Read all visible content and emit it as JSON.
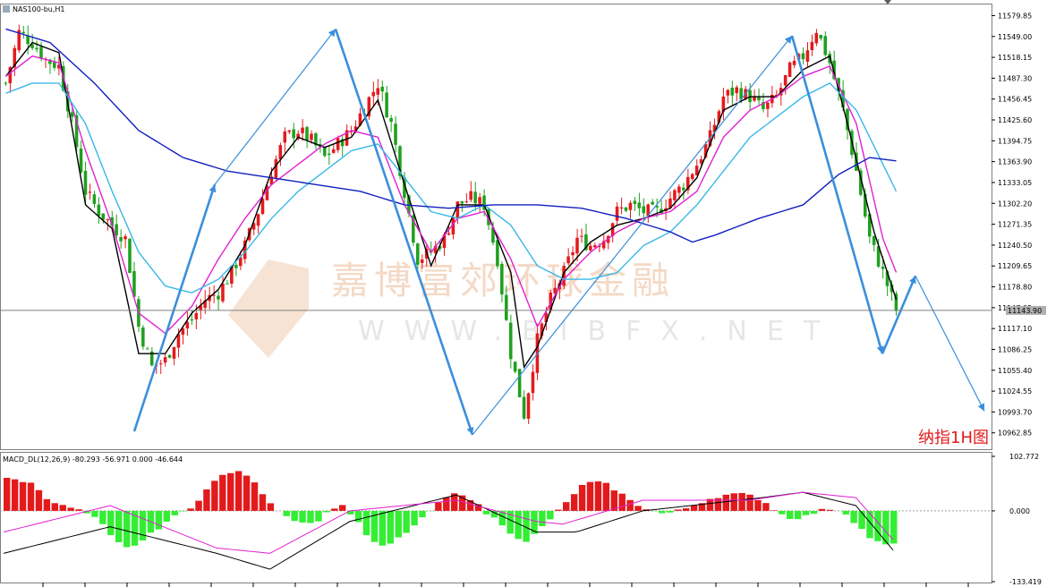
{
  "main_title": "NAS100-bu,H1",
  "macd_title": "MACD_DL(12,26,9) -80.293 -56.971 0.000 -46.644",
  "annotation": "纳指1H图",
  "watermark_cn": "嘉博富郊环球金融",
  "watermark_en": "WWW.BIBFX.NET",
  "current_price_label": "11143.90",
  "colors": {
    "bull": "#e31a1c",
    "bear": "#1fa01f",
    "ma_black": "#000000",
    "ma_magenta": "#e020d0",
    "ma_cyan": "#38b8e8",
    "ma_navy": "#1020c0",
    "arrow": "#3a8fdc",
    "macd_pos": "#e31a1c",
    "macd_neg": "#33ee33"
  },
  "chart_data": [
    {
      "type": "candlestick",
      "symbol": "NAS100-bu",
      "timeframe": "H1",
      "ylim": [
        10940,
        11595
      ],
      "y_ticks": [
        "11579.85",
        "11549.00",
        "11518.15",
        "11487.30",
        "11456.45",
        "11425.60",
        "11394.75",
        "11363.90",
        "11333.05",
        "11302.20",
        "11271.35",
        "11240.50",
        "11209.65",
        "11178.80",
        "11147.95",
        "11117.10",
        "11086.25",
        "11055.40",
        "11024.55",
        "10993.70",
        "10962.85"
      ],
      "y_tick_values": [
        11579.85,
        11549.0,
        11518.15,
        11487.3,
        11456.45,
        11425.6,
        11394.75,
        11363.9,
        11333.05,
        11302.2,
        11271.35,
        11240.5,
        11209.65,
        11178.8,
        11147.95,
        11117.1,
        11086.25,
        11055.4,
        11024.55,
        10993.7,
        10962.85
      ],
      "current_price": 11143.9,
      "close_path": [
        [
          0,
          11480
        ],
        [
          3,
          11555
        ],
        [
          6,
          11540
        ],
        [
          9,
          11515
        ],
        [
          12,
          11505
        ],
        [
          15,
          11420
        ],
        [
          18,
          11320
        ],
        [
          21,
          11290
        ],
        [
          24,
          11270
        ],
        [
          27,
          11250
        ],
        [
          30,
          11120
        ],
        [
          33,
          11060
        ],
        [
          36,
          11070
        ],
        [
          39,
          11110
        ],
        [
          42,
          11130
        ],
        [
          45,
          11160
        ],
        [
          48,
          11170
        ],
        [
          51,
          11200
        ],
        [
          54,
          11240
        ],
        [
          57,
          11290
        ],
        [
          60,
          11350
        ],
        [
          63,
          11400
        ],
        [
          66,
          11410
        ],
        [
          69,
          11395
        ],
        [
          72,
          11370
        ],
        [
          75,
          11390
        ],
        [
          78,
          11410
        ],
        [
          81,
          11445
        ],
        [
          84,
          11480
        ],
        [
          87,
          11420
        ],
        [
          90,
          11320
        ],
        [
          93,
          11220
        ],
        [
          96,
          11230
        ],
        [
          99,
          11250
        ],
        [
          102,
          11300
        ],
        [
          105,
          11310
        ],
        [
          108,
          11300
        ],
        [
          111,
          11220
        ],
        [
          114,
          11080
        ],
        [
          117,
          10990
        ],
        [
          120,
          11100
        ],
        [
          123,
          11160
        ],
        [
          126,
          11200
        ],
        [
          129,
          11250
        ],
        [
          132,
          11240
        ],
        [
          135,
          11250
        ],
        [
          138,
          11290
        ],
        [
          141,
          11300
        ],
        [
          144,
          11290
        ],
        [
          147,
          11290
        ],
        [
          150,
          11310
        ],
        [
          153,
          11330
        ],
        [
          156,
          11360
        ],
        [
          159,
          11400
        ],
        [
          162,
          11460
        ],
        [
          165,
          11470
        ],
        [
          168,
          11460
        ],
        [
          171,
          11440
        ],
        [
          174,
          11460
        ],
        [
          177,
          11500
        ],
        [
          180,
          11520
        ],
        [
          183,
          11560
        ],
        [
          186,
          11510
        ],
        [
          189,
          11440
        ],
        [
          192,
          11350
        ],
        [
          195,
          11250
        ],
        [
          198,
          11200
        ],
        [
          201,
          11143.9
        ]
      ],
      "moving_averages": [
        {
          "color": "#000000",
          "points": [
            [
              0,
              11490
            ],
            [
              6,
              11540
            ],
            [
              12,
              11525
            ],
            [
              18,
              11300
            ],
            [
              24,
              11265
            ],
            [
              30,
              11080
            ],
            [
              36,
              11080
            ],
            [
              42,
              11140
            ],
            [
              48,
              11175
            ],
            [
              54,
              11240
            ],
            [
              60,
              11350
            ],
            [
              66,
              11400
            ],
            [
              72,
              11385
            ],
            [
              78,
              11400
            ],
            [
              84,
              11455
            ],
            [
              90,
              11330
            ],
            [
              96,
              11210
            ],
            [
              102,
              11300
            ],
            [
              108,
              11300
            ],
            [
              114,
              11200
            ],
            [
              117,
              11060
            ],
            [
              120,
              11090
            ],
            [
              126,
              11200
            ],
            [
              132,
              11245
            ],
            [
              138,
              11270
            ],
            [
              144,
              11280
            ],
            [
              150,
              11295
            ],
            [
              156,
              11340
            ],
            [
              162,
              11440
            ],
            [
              168,
              11460
            ],
            [
              174,
              11460
            ],
            [
              180,
              11500
            ],
            [
              186,
              11520
            ],
            [
              190,
              11420
            ],
            [
              196,
              11260
            ],
            [
              201,
              11160
            ]
          ]
        },
        {
          "color": "#e020d0",
          "points": [
            [
              0,
              11490
            ],
            [
              6,
              11520
            ],
            [
              12,
              11510
            ],
            [
              18,
              11380
            ],
            [
              24,
              11270
            ],
            [
              30,
              11140
            ],
            [
              36,
              11110
            ],
            [
              42,
              11150
            ],
            [
              48,
              11220
            ],
            [
              54,
              11280
            ],
            [
              60,
              11330
            ],
            [
              66,
              11360
            ],
            [
              72,
              11390
            ],
            [
              78,
              11410
            ],
            [
              84,
              11400
            ],
            [
              90,
              11300
            ],
            [
              96,
              11230
            ],
            [
              102,
              11280
            ],
            [
              108,
              11290
            ],
            [
              114,
              11220
            ],
            [
              120,
              11120
            ],
            [
              126,
              11190
            ],
            [
              132,
              11230
            ],
            [
              138,
              11260
            ],
            [
              144,
              11280
            ],
            [
              150,
              11290
            ],
            [
              156,
              11320
            ],
            [
              162,
              11400
            ],
            [
              168,
              11440
            ],
            [
              174,
              11460
            ],
            [
              180,
              11490
            ],
            [
              186,
              11505
            ],
            [
              192,
              11420
            ],
            [
              198,
              11250
            ],
            [
              201,
              11200
            ]
          ]
        },
        {
          "color": "#38b8e8",
          "points": [
            [
              0,
              11465
            ],
            [
              6,
              11480
            ],
            [
              12,
              11480
            ],
            [
              18,
              11420
            ],
            [
              24,
              11320
            ],
            [
              30,
              11230
            ],
            [
              36,
              11180
            ],
            [
              42,
              11170
            ],
            [
              48,
              11190
            ],
            [
              54,
              11230
            ],
            [
              60,
              11280
            ],
            [
              66,
              11320
            ],
            [
              72,
              11350
            ],
            [
              78,
              11380
            ],
            [
              84,
              11390
            ],
            [
              90,
              11340
            ],
            [
              96,
              11290
            ],
            [
              102,
              11280
            ],
            [
              108,
              11300
            ],
            [
              114,
              11270
            ],
            [
              120,
              11210
            ],
            [
              126,
              11190
            ],
            [
              132,
              11190
            ],
            [
              138,
              11200
            ],
            [
              144,
              11240
            ],
            [
              150,
              11260
            ],
            [
              156,
              11300
            ],
            [
              162,
              11350
            ],
            [
              168,
              11400
            ],
            [
              174,
              11430
            ],
            [
              180,
              11460
            ],
            [
              186,
              11480
            ],
            [
              192,
              11440
            ],
            [
              198,
              11360
            ],
            [
              201,
              11320
            ]
          ]
        },
        {
          "color": "#1020c0",
          "points": [
            [
              0,
              11560
            ],
            [
              10,
              11540
            ],
            [
              20,
              11480
            ],
            [
              30,
              11410
            ],
            [
              40,
              11370
            ],
            [
              50,
              11350
            ],
            [
              60,
              11340
            ],
            [
              70,
              11330
            ],
            [
              80,
              11320
            ],
            [
              90,
              11300
            ],
            [
              100,
              11295
            ],
            [
              110,
              11300
            ],
            [
              120,
              11300
            ],
            [
              130,
              11295
            ],
            [
              140,
              11280
            ],
            [
              150,
              11260
            ],
            [
              155,
              11245
            ],
            [
              160,
              11255
            ],
            [
              170,
              11280
            ],
            [
              180,
              11300
            ],
            [
              188,
              11345
            ],
            [
              195,
              11370
            ],
            [
              201,
              11365
            ]
          ]
        }
      ],
      "annotation_arrows": [
        [
          [
            150,
            10965
          ],
          [
            240,
            11330
          ],
          [
            375,
            11560
          ]
        ],
        [
          [
            375,
            11560
          ],
          [
            528,
            10960
          ],
          [
            885,
            11550
          ]
        ],
        [
          [
            885,
            11550
          ],
          [
            986,
            11080
          ],
          [
            1023,
            11195
          ],
          [
            1100,
            10995
          ]
        ]
      ],
      "annotation_text": "纳指1H图"
    },
    {
      "type": "bar",
      "title": "MACD_DL(12,26,9) -80.293 -56.971 0.000 -46.644",
      "ylim": [
        -133.419,
        102.772
      ],
      "y_ticks": [
        "102.772",
        "0.000",
        "-133.419"
      ],
      "y_tick_values": [
        102.772,
        0,
        -133.419
      ],
      "histogram": [
        [
          0,
          60
        ],
        [
          5,
          58
        ],
        [
          10,
          50
        ],
        [
          15,
          25
        ],
        [
          20,
          10
        ],
        [
          25,
          5
        ],
        [
          30,
          -5
        ],
        [
          35,
          -20
        ],
        [
          40,
          -55
        ],
        [
          45,
          -70
        ],
        [
          50,
          -60
        ],
        [
          55,
          -40
        ],
        [
          60,
          -20
        ],
        [
          65,
          -5
        ],
        [
          70,
          10
        ],
        [
          75,
          40
        ],
        [
          80,
          65
        ],
        [
          85,
          75
        ],
        [
          90,
          68
        ],
        [
          95,
          40
        ],
        [
          100,
          10
        ],
        [
          105,
          -10
        ],
        [
          110,
          -20
        ],
        [
          115,
          -25
        ],
        [
          120,
          -5
        ],
        [
          125,
          15
        ],
        [
          130,
          -10
        ],
        [
          135,
          -45
        ],
        [
          140,
          -70
        ],
        [
          145,
          -60
        ],
        [
          150,
          -40
        ],
        [
          155,
          -20
        ],
        [
          160,
          5
        ],
        [
          165,
          25
        ],
        [
          170,
          35
        ],
        [
          175,
          20
        ],
        [
          180,
          -5
        ],
        [
          185,
          -20
        ],
        [
          190,
          -45
        ],
        [
          195,
          -60
        ],
        [
          200,
          -35
        ],
        [
          205,
          -10
        ],
        [
          210,
          15
        ],
        [
          215,
          45
        ],
        [
          220,
          55
        ],
        [
          225,
          50
        ],
        [
          230,
          35
        ],
        [
          235,
          15
        ],
        [
          240,
          5
        ],
        [
          245,
          -5
        ],
        [
          250,
          -3
        ],
        [
          255,
          5
        ],
        [
          260,
          15
        ],
        [
          265,
          25
        ],
        [
          270,
          30
        ],
        [
          275,
          32
        ],
        [
          280,
          28
        ],
        [
          285,
          15
        ],
        [
          290,
          -5
        ],
        [
          295,
          -15
        ],
        [
          300,
          -10
        ],
        [
          305,
          0
        ],
        [
          310,
          5
        ],
        [
          315,
          -5
        ],
        [
          320,
          -30
        ],
        [
          325,
          -55
        ],
        [
          330,
          -65
        ],
        [
          335,
          -60
        ]
      ],
      "macd_line": [
        [
          0,
          -40
        ],
        [
          40,
          10
        ],
        [
          80,
          -70
        ],
        [
          100,
          -80
        ],
        [
          130,
          0
        ],
        [
          170,
          20
        ],
        [
          200,
          -20
        ],
        [
          210,
          -25
        ],
        [
          240,
          20
        ],
        [
          280,
          20
        ],
        [
          300,
          35
        ],
        [
          320,
          25
        ],
        [
          335,
          -60
        ]
      ],
      "signal_line": [
        [
          0,
          -80
        ],
        [
          40,
          -30
        ],
        [
          80,
          -80
        ],
        [
          100,
          -110
        ],
        [
          130,
          -20
        ],
        [
          170,
          30
        ],
        [
          200,
          -40
        ],
        [
          215,
          -40
        ],
        [
          240,
          0
        ],
        [
          285,
          25
        ],
        [
          300,
          35
        ],
        [
          320,
          10
        ],
        [
          335,
          -80
        ]
      ]
    }
  ]
}
